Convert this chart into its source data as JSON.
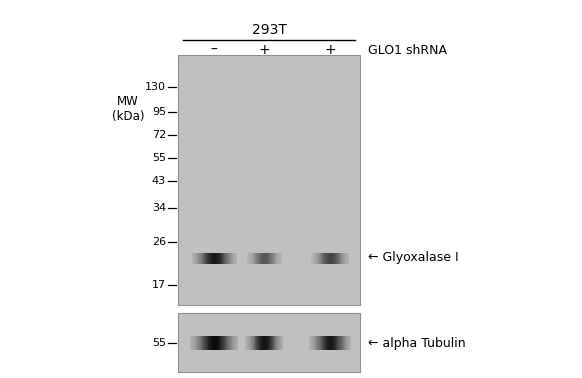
{
  "bg_color": "#ffffff",
  "gel_bg_color": "#c8c8c8",
  "fig_width": 5.82,
  "fig_height": 3.78,
  "dpi": 100,
  "title_293T": "293T",
  "lane_labels": [
    "–",
    "+",
    "+"
  ],
  "glo1_label": "GLO1 shRNA",
  "mw_label": "MW\n(kDa)",
  "mw_marks": [
    130,
    95,
    72,
    55,
    43,
    34,
    26,
    17
  ],
  "band1_label": "← Glyoxalase I",
  "band2_label": "← alpha Tubulin",
  "mw2_mark": 55,
  "gel_color": "#c0c0c0",
  "band_color": "#111111",
  "text_color": "#000000"
}
